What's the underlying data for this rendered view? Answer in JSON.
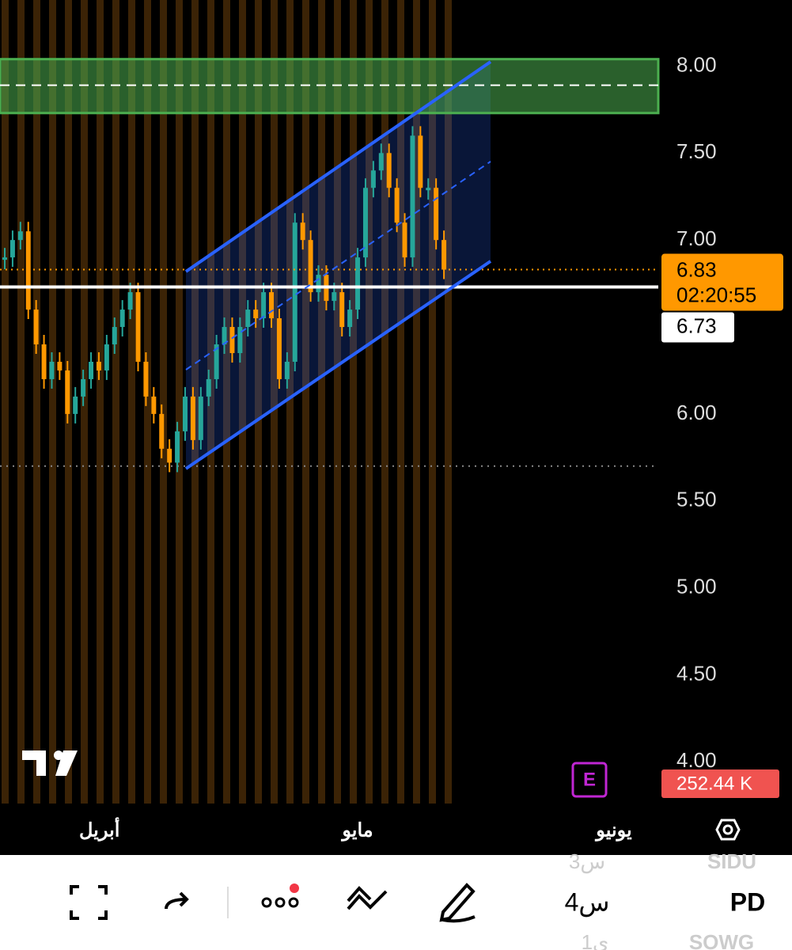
{
  "chart": {
    "yticks": [
      {
        "value": 8,
        "label": "8.00"
      },
      {
        "value": 7.5,
        "label": "7.50"
      },
      {
        "value": 7,
        "label": "7.00"
      },
      {
        "value": 6,
        "label": "6.00"
      },
      {
        "value": 5.5,
        "label": "5.50"
      },
      {
        "value": 5,
        "label": "5.00"
      },
      {
        "value": 4.5,
        "label": "4.50"
      },
      {
        "value": 4,
        "label": "4.00"
      }
    ],
    "ylim": [
      3.76,
      8.38
    ],
    "last_price": {
      "value": 6.83,
      "label": "6.83"
    },
    "countdown": "02:20:55",
    "line_price": {
      "value": 6.73,
      "label": "6.73"
    },
    "low_price": 5.7,
    "target_zone": [
      7.73,
      8.04
    ],
    "target_mid": 7.89,
    "volume_label": "252.44 K",
    "x_labels": [
      "أبريل",
      "مايو",
      "يونيو"
    ],
    "closes": [
      6.9,
      7.0,
      7.05,
      6.6,
      6.4,
      6.2,
      6.3,
      6.25,
      6.0,
      6.1,
      6.2,
      6.3,
      6.25,
      6.4,
      6.5,
      6.6,
      6.7,
      6.3,
      6.1,
      6.0,
      5.8,
      5.72,
      5.9,
      6.1,
      5.85,
      6.1,
      6.2,
      6.4,
      6.5,
      6.35,
      6.5,
      6.6,
      6.55,
      6.7,
      6.55,
      6.2,
      6.3,
      7.1,
      7.0,
      6.7,
      6.8,
      6.65,
      6.7,
      6.5,
      6.6,
      6.9,
      7.3,
      7.4,
      7.5,
      7.3,
      7.1,
      6.9,
      7.6,
      7.3,
      7.3,
      7.0,
      6.83
    ],
    "up_color": "#26a69a",
    "down_color": "#ff9800"
  },
  "toolbar": {
    "symbol": "PD",
    "symbol_above": "SIDU",
    "symbol_below": "SOWG",
    "interval": "4س",
    "interval_above": "3س",
    "interval_below": "1ي"
  }
}
